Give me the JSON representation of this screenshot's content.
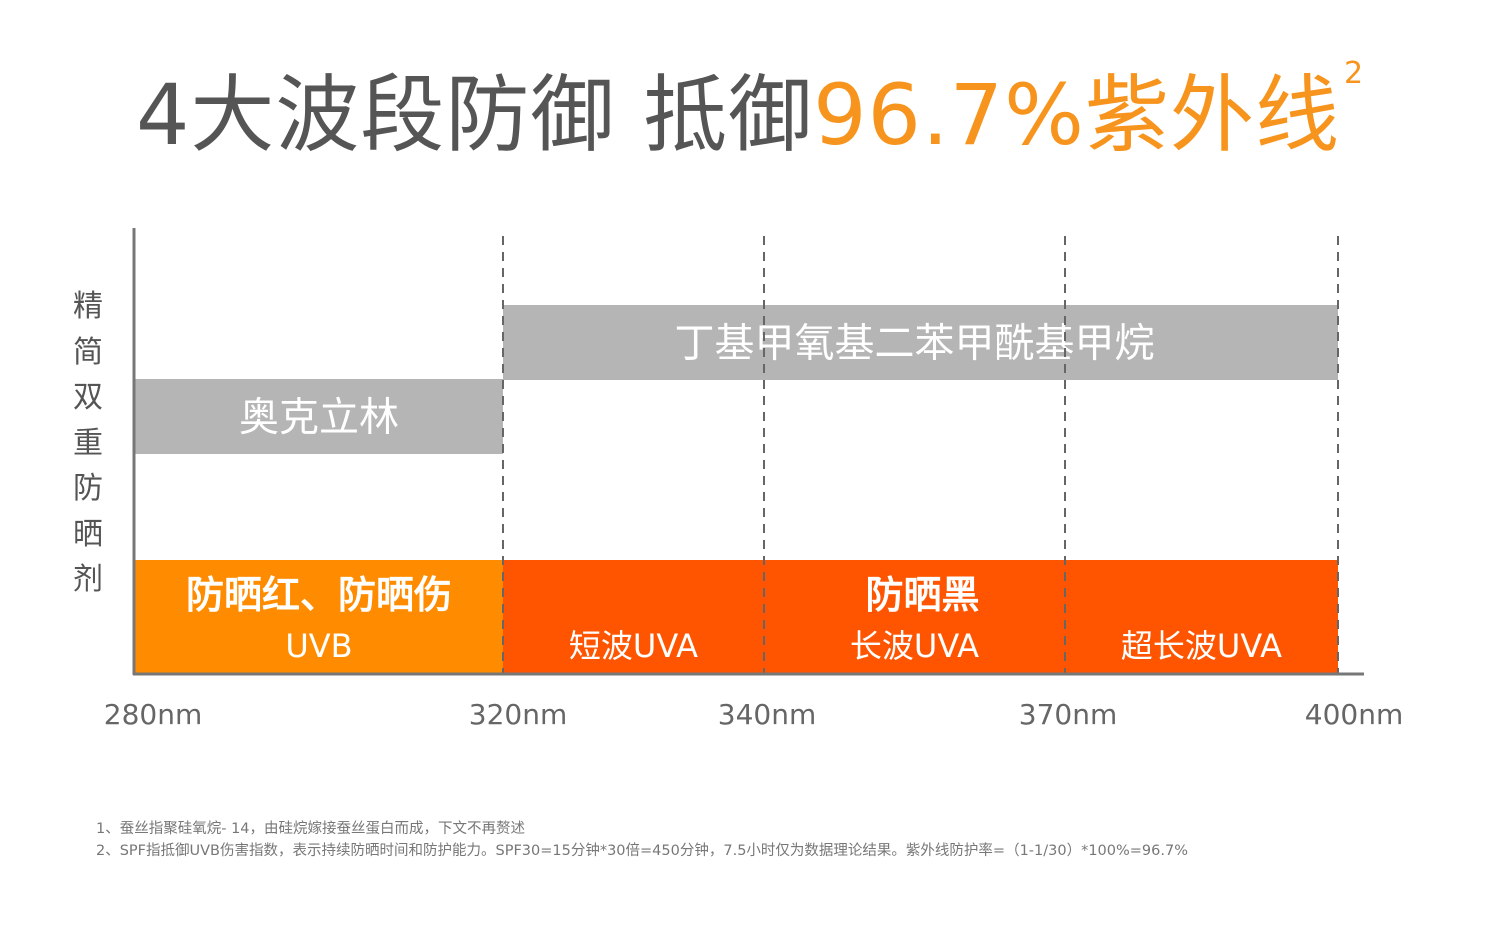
{
  "header": {
    "title_main": "4大波段防御  抵御",
    "title_highlight": "96.7%紫外线",
    "title_sup": "2"
  },
  "chart_data": {
    "type": "bar",
    "xlabel": "",
    "ylabel": "精简双重防晒剂",
    "xlim": [
      280,
      400
    ],
    "x_unit": "nm",
    "x_ticks": [
      280,
      320,
      340,
      370,
      400
    ],
    "tick_labels": [
      "280nm",
      "320nm",
      "340nm",
      "370nm",
      "400nm"
    ],
    "grid": "dashed vertical lines at 320, 340, 370, 400",
    "filters": [
      {
        "name": "奥克立林",
        "from": 280,
        "to": 320,
        "color": "#b5b5b5"
      },
      {
        "name": "丁基甲氧基二苯甲酰基甲烷",
        "from": 320,
        "to": 400,
        "color": "#b5b5b5"
      }
    ],
    "bands": [
      {
        "name": "UVB",
        "from": 280,
        "to": 320,
        "color": "#ff8c00"
      },
      {
        "name": "短波UVA",
        "from": 320,
        "to": 340,
        "color": "#ff5500"
      },
      {
        "name": "长波UVA",
        "from": 340,
        "to": 370,
        "color": "#ff5500"
      },
      {
        "name": "超长波UVA",
        "from": 370,
        "to": 400,
        "color": "#ff5500"
      }
    ],
    "effects": [
      {
        "text": "防晒红、防晒伤",
        "from": 280,
        "to": 320
      },
      {
        "text": "防晒黑",
        "from": 320,
        "to": 400
      }
    ]
  },
  "notes": [
    "1、蚕丝指聚硅氧烷- 14，由硅烷嫁接蚕丝蛋白而成，下文不再赘述",
    "2、SPF指抵御UVB伤害指数，表示持续防晒时间和防护能力。SPF30=15分钟*30倍=450分钟，7.5小时仅为数据理论结果。紫外线防护率=（1-1/30）*100%=96.7%"
  ]
}
